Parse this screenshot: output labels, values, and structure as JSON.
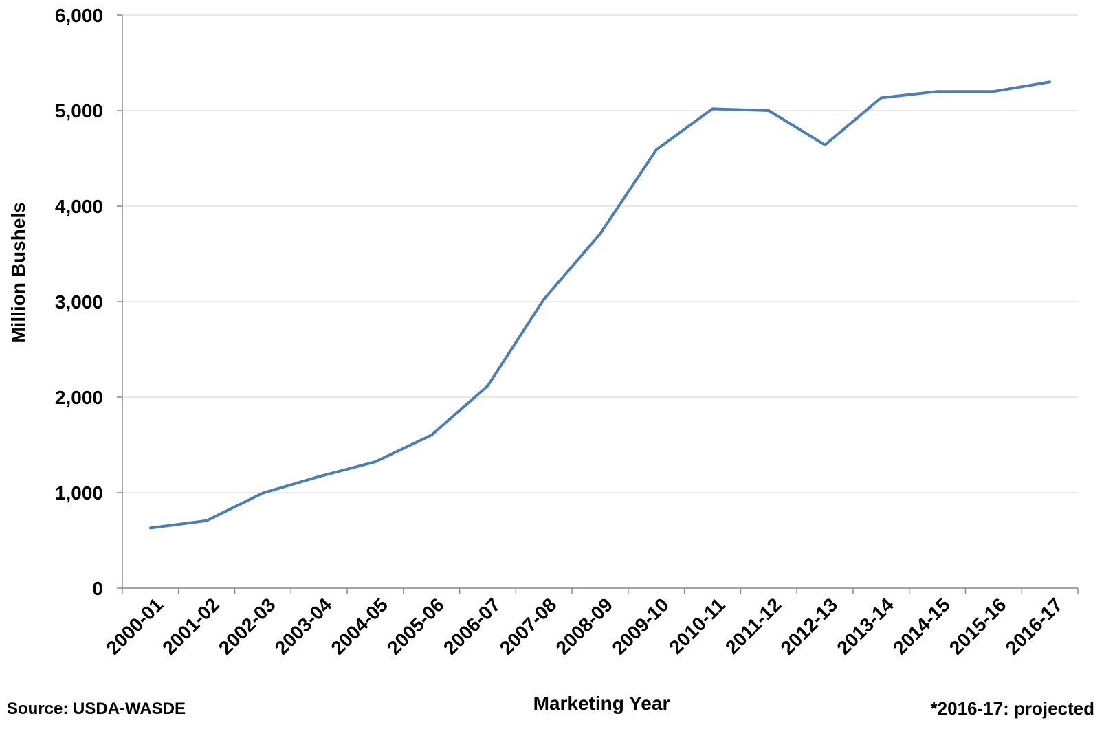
{
  "chart_data": {
    "type": "line",
    "title": "",
    "xlabel": "Marketing Year",
    "ylabel": "Million Bushels",
    "categories": [
      "2000-01",
      "2001-02",
      "2002-03",
      "2003-04",
      "2004-05",
      "2005-06",
      "2006-07",
      "2007-08",
      "2008-09",
      "2009-10",
      "2010-11",
      "2011-12",
      "2012-13",
      "2013-14",
      "2014-15",
      "2015-16",
      "2016-17"
    ],
    "series": [
      {
        "values": [
          630,
          707,
          996,
          1168,
          1323,
          1603,
          2119,
          3026,
          3709,
          4591,
          5019,
          5000,
          4641,
          5134,
          5200,
          5200,
          5300
        ],
        "color": "#4a7ebb"
      }
    ],
    "ylim": [
      0,
      6000
    ],
    "yticks": [
      "0",
      "1,000",
      "2,000",
      "3,000",
      "4,000",
      "5,000",
      "6,000"
    ],
    "grid": true,
    "legend": "none"
  },
  "notes": {
    "source": "Source: USDA-WASDE",
    "projected": "*2016-17: projected"
  }
}
